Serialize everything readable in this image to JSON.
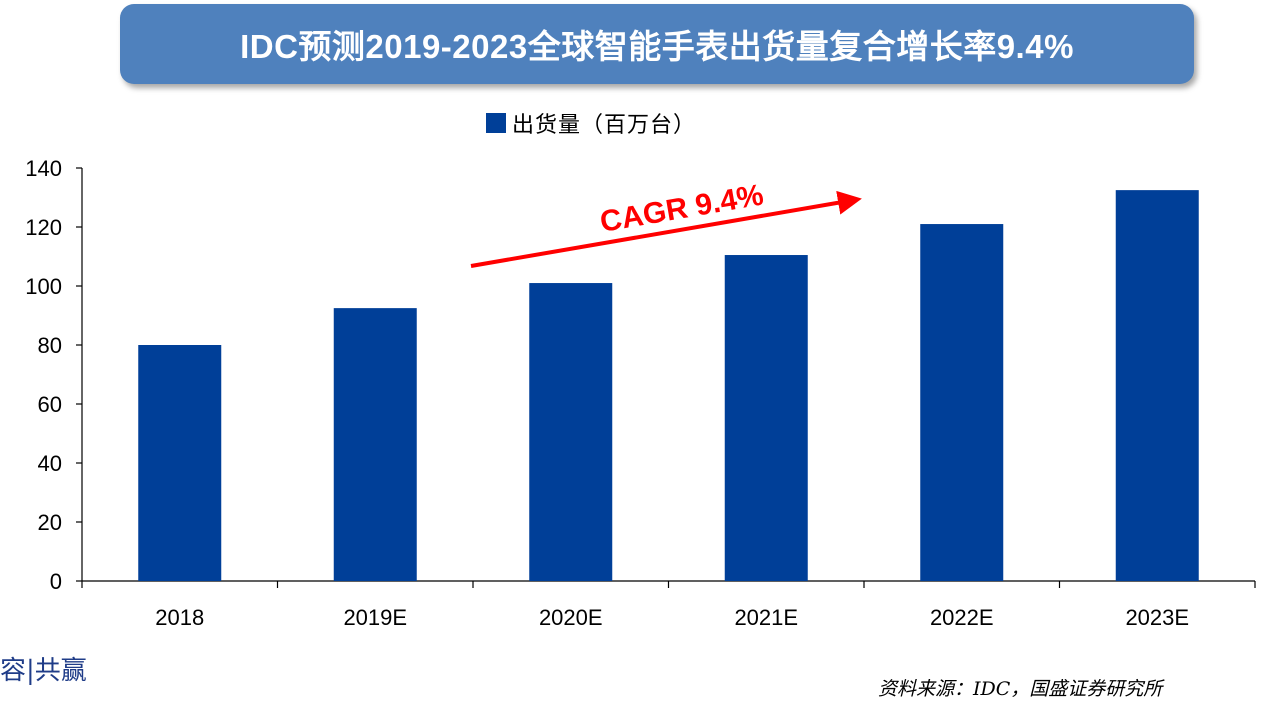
{
  "title": "IDC预测2019-2023全球智能手表出货量复合增长率9.4%",
  "footer_left": "容|共赢",
  "source": "资料来源：IDC，国盛证券研究所",
  "colors": {
    "bar": "#003f98",
    "banner": "#4f81bd",
    "arrow": "#ff0000"
  },
  "chart_data": {
    "type": "bar",
    "categories": [
      "2018",
      "2019E",
      "2020E",
      "2021E",
      "2022E",
      "2023E"
    ],
    "series": [
      {
        "name": "出货量（百万台）",
        "values": [
          80,
          92.5,
          101,
          110.5,
          121,
          132.5
        ]
      }
    ],
    "ylim": [
      0,
      140
    ],
    "yticks": [
      0,
      20,
      40,
      60,
      80,
      100,
      120,
      140
    ],
    "legend_position": "top-center",
    "grid": false,
    "annotation": {
      "text": "CAGR 9.4%",
      "from_category": "2019E",
      "to_category": "2021E"
    }
  }
}
